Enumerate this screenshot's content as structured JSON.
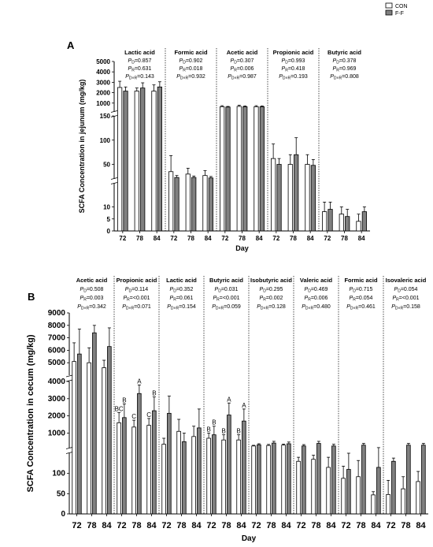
{
  "legend": [
    {
      "label": "CON",
      "fill": "#ffffff"
    },
    {
      "label": "F-F",
      "fill": "#808080"
    }
  ],
  "chart_data": [
    {
      "type": "bar",
      "panel_label": "A",
      "ylabel": "SCFA Concentration in jejunum (mg/kg)",
      "xlabel": "Day",
      "days": [
        "72",
        "78",
        "84"
      ],
      "axis_segments": [
        {
          "range": [
            0,
            20
          ],
          "ticks": [
            0,
            5,
            10
          ]
        },
        {
          "range": [
            20,
            150
          ],
          "ticks": [
            50,
            100,
            150
          ]
        },
        {
          "range": [
            150,
            5000
          ],
          "ticks": [
            1000,
            2000,
            3000,
            4000,
            5000
          ]
        }
      ],
      "groups": [
        {
          "name": "Lactic acid",
          "p_d": "0.857",
          "p_r": "0.631",
          "p_dr": "0.143",
          "con": [
            2500,
            2150,
            2150
          ],
          "con_err": [
            600,
            300,
            600
          ],
          "ff": [
            2150,
            2450,
            2550
          ],
          "ff_err": [
            400,
            500,
            500
          ]
        },
        {
          "name": "Formic acid",
          "p_d": "0.902",
          "p_r": "0.018",
          "p_dr": "0.932",
          "con": [
            35,
            30,
            27
          ],
          "con_err": [
            33,
            12,
            10
          ],
          "ff": [
            23,
            23,
            22
          ],
          "ff_err": [
            4,
            3,
            3
          ]
        },
        {
          "name": "Acetic acid",
          "p_d": "0.307",
          "p_r": "0.006",
          "p_dr": "0.987",
          "con": [
            650,
            680,
            650
          ],
          "con_err": [
            100,
            120,
            100
          ],
          "ff": [
            620,
            650,
            650
          ],
          "ff_err": [
            60,
            80,
            80
          ]
        },
        {
          "name": "Propionic acid",
          "p_d": "0.993",
          "p_r": "0.418",
          "p_dr": "0.193",
          "con": [
            62,
            50,
            50
          ],
          "con_err": [
            30,
            20,
            20
          ],
          "ff": [
            50,
            70,
            48
          ],
          "ff_err": [
            12,
            35,
            12
          ]
        },
        {
          "name": "Butyric acid",
          "p_d": "0.378",
          "p_r": "0.969",
          "p_dr": "0.808",
          "con": [
            8,
            7,
            4
          ],
          "con_err": [
            4,
            3,
            3
          ],
          "ff": [
            9,
            6,
            8
          ],
          "ff_err": [
            3,
            3,
            2
          ]
        }
      ]
    },
    {
      "type": "bar",
      "panel_label": "B",
      "ylabel": "SCFA Concentration in cecum (mg/kg)",
      "xlabel": "Day",
      "days": [
        "72",
        "78",
        "84"
      ],
      "axis_segments": [
        {
          "range": [
            0,
            150
          ],
          "ticks": [
            0,
            50,
            100
          ]
        },
        {
          "range": [
            150,
            4000
          ],
          "ticks": [
            1000,
            2000,
            3000,
            4000
          ]
        },
        {
          "range": [
            4000,
            9000
          ],
          "ticks": [
            5000,
            6000,
            7000,
            8000,
            9000
          ]
        }
      ],
      "groups": [
        {
          "name": "Acetic acid",
          "p_d": "0.508",
          "p_r": "0.003",
          "p_dr": "0.342",
          "con": [
            5100,
            5000,
            4600
          ],
          "con_err": [
            1500,
            1200,
            600
          ],
          "ff": [
            5700,
            7400,
            6300
          ],
          "ff_err": [
            2000,
            600,
            1500
          ],
          "con_letters": [
            "",
            "",
            ""
          ],
          "ff_letters": [
            "",
            "",
            ""
          ]
        },
        {
          "name": "Propionic acid",
          "p_d": "0.114",
          "p_r": "<0.001",
          "p_dr": "0.071",
          "con": [
            1600,
            1350,
            1450
          ],
          "con_err": [
            600,
            400,
            400
          ],
          "ff": [
            1900,
            3300,
            2300
          ],
          "ff_err": [
            800,
            500,
            800
          ],
          "con_letters": [
            "BC",
            "C",
            "C"
          ],
          "ff_letters": [
            "B",
            "A",
            "B"
          ]
        },
        {
          "name": "Lactic acid",
          "p_d": "0.352",
          "p_r": "0.061",
          "p_dr": "0.154",
          "con": [
            350,
            1100,
            800
          ],
          "con_err": [
            350,
            700,
            600
          ],
          "ff": [
            2150,
            500,
            1300
          ],
          "ff_err": [
            1000,
            500,
            1100
          ],
          "con_letters": [
            "",
            "",
            ""
          ],
          "ff_letters": [
            "",
            "",
            ""
          ]
        },
        {
          "name": "Butyric acid",
          "p_d": "0.031",
          "p_r": "<0.001",
          "p_dr": "0.059",
          "con": [
            700,
            600,
            600
          ],
          "con_err": [
            300,
            300,
            300
          ],
          "ff": [
            900,
            2050,
            1700
          ],
          "ff_err": [
            500,
            700,
            700
          ],
          "con_letters": [
            "B",
            "B",
            "B"
          ],
          "ff_letters": [
            "B",
            "A",
            "A"
          ]
        },
        {
          "name": "Isobutyric acid",
          "p_d": "0.295",
          "p_r": "0.002",
          "p_dr": "0.128",
          "con": [
            250,
            280,
            300
          ],
          "con_err": [
            40,
            60,
            60
          ],
          "ff": [
            320,
            420,
            380
          ],
          "ff_err": [
            60,
            100,
            100
          ],
          "con_letters": [
            "",
            "",
            ""
          ],
          "ff_letters": [
            "",
            "",
            ""
          ]
        },
        {
          "name": "Valeric acid",
          "p_d": "0.469",
          "p_r": "0.006",
          "p_dr": "0.480",
          "con": [
            130,
            135,
            115
          ],
          "con_err": [
            10,
            10,
            25
          ],
          "ff": [
            250,
            400,
            250
          ],
          "ff_err": [
            80,
            120,
            100
          ],
          "con_letters": [
            "",
            "",
            ""
          ],
          "ff_letters": [
            "",
            "",
            ""
          ]
        },
        {
          "name": "Formic acid",
          "p_d": "0.715",
          "p_r": "0.054",
          "p_dr": "0.461",
          "con": [
            88,
            92,
            47
          ],
          "con_err": [
            30,
            40,
            8
          ],
          "ff": [
            110,
            300,
            115
          ],
          "ff_err": [
            40,
            100,
            40
          ],
          "con_letters": [
            "",
            "",
            ""
          ],
          "ff_letters": [
            "",
            "",
            ""
          ]
        },
        {
          "name": "Isovaleric acid",
          "p_d": "0.054",
          "p_r": "<0.001",
          "p_dr": "0.158",
          "con": [
            48,
            62,
            80
          ],
          "con_err": [
            35,
            30,
            25
          ],
          "ff": [
            130,
            300,
            300
          ],
          "ff_err": [
            8,
            100,
            100
          ],
          "con_letters": [
            "",
            "",
            ""
          ],
          "ff_letters": [
            "",
            "",
            ""
          ]
        }
      ]
    }
  ]
}
